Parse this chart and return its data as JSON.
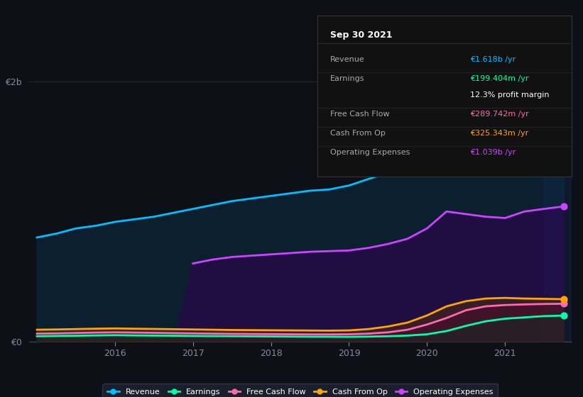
{
  "background_color": "#0d1117",
  "plot_bg_color": "#0d1117",
  "ylim": [
    0,
    2200000000.0
  ],
  "revenue": {
    "x": [
      2015.0,
      2015.25,
      2015.5,
      2015.75,
      2016.0,
      2016.25,
      2016.5,
      2016.75,
      2017.0,
      2017.25,
      2017.5,
      2017.75,
      2018.0,
      2018.25,
      2018.5,
      2018.75,
      2019.0,
      2019.25,
      2019.5,
      2019.75,
      2020.0,
      2020.25,
      2020.5,
      2020.75,
      2021.0,
      2021.25,
      2021.5,
      2021.75
    ],
    "y": [
      800000000.0,
      830000000.0,
      870000000.0,
      890000000.0,
      920000000.0,
      940000000.0,
      960000000.0,
      990000000.0,
      1020000000.0,
      1050000000.0,
      1080000000.0,
      1100000000.0,
      1120000000.0,
      1140000000.0,
      1160000000.0,
      1170000000.0,
      1200000000.0,
      1250000000.0,
      1300000000.0,
      1350000000.0,
      1520000000.0,
      1620000000.0,
      1580000000.0,
      1550000000.0,
      1540000000.0,
      1560000000.0,
      1590000000.0,
      1618000000.0
    ],
    "color": "#00bfff",
    "label": "Revenue",
    "linewidth": 2.0
  },
  "earnings": {
    "x": [
      2015.0,
      2015.25,
      2015.5,
      2015.75,
      2016.0,
      2016.25,
      2016.5,
      2016.75,
      2017.0,
      2017.25,
      2017.5,
      2017.75,
      2018.0,
      2018.25,
      2018.5,
      2018.75,
      2019.0,
      2019.25,
      2019.5,
      2019.75,
      2020.0,
      2020.25,
      2020.5,
      2020.75,
      2021.0,
      2021.25,
      2021.5,
      2021.75
    ],
    "y": [
      40000000.0,
      42000000.0,
      44000000.0,
      46000000.0,
      48000000.0,
      46000000.0,
      45000000.0,
      44000000.0,
      42000000.0,
      41000000.0,
      40000000.0,
      39000000.0,
      38000000.0,
      37000000.0,
      36000000.0,
      36000000.0,
      35000000.0,
      37000000.0,
      40000000.0,
      45000000.0,
      55000000.0,
      80000000.0,
      120000000.0,
      155000000.0,
      175000000.0,
      185000000.0,
      195000000.0,
      199000000.0
    ],
    "color": "#00ffaa",
    "label": "Earnings",
    "linewidth": 2.0
  },
  "free_cash_flow": {
    "x": [
      2015.0,
      2015.25,
      2015.5,
      2015.75,
      2016.0,
      2016.25,
      2016.5,
      2016.75,
      2017.0,
      2017.25,
      2017.5,
      2017.75,
      2018.0,
      2018.25,
      2018.5,
      2018.75,
      2019.0,
      2019.25,
      2019.5,
      2019.75,
      2020.0,
      2020.25,
      2020.5,
      2020.75,
      2021.0,
      2021.25,
      2021.5,
      2021.75
    ],
    "y": [
      60000000.0,
      62000000.0,
      65000000.0,
      68000000.0,
      70000000.0,
      68000000.0,
      66000000.0,
      64000000.0,
      62000000.0,
      60000000.0,
      58000000.0,
      57000000.0,
      56000000.0,
      55000000.0,
      54000000.0,
      54000000.0,
      55000000.0,
      60000000.0,
      70000000.0,
      90000000.0,
      130000000.0,
      180000000.0,
      240000000.0,
      270000000.0,
      280000000.0,
      285000000.0,
      288000000.0,
      290000000.0
    ],
    "color": "#ff69b4",
    "label": "Free Cash Flow",
    "linewidth": 2.0
  },
  "cash_from_op": {
    "x": [
      2015.0,
      2015.25,
      2015.5,
      2015.75,
      2016.0,
      2016.25,
      2016.5,
      2016.75,
      2017.0,
      2017.25,
      2017.5,
      2017.75,
      2018.0,
      2018.25,
      2018.5,
      2018.75,
      2019.0,
      2019.25,
      2019.5,
      2019.75,
      2020.0,
      2020.25,
      2020.5,
      2020.75,
      2021.0,
      2021.25,
      2021.5,
      2021.75
    ],
    "y": [
      90000000.0,
      92000000.0,
      95000000.0,
      98000000.0,
      100000000.0,
      98000000.0,
      96000000.0,
      94000000.0,
      92000000.0,
      90000000.0,
      88000000.0,
      87000000.0,
      86000000.0,
      85000000.0,
      84000000.0,
      83000000.0,
      85000000.0,
      95000000.0,
      115000000.0,
      145000000.0,
      200000000.0,
      270000000.0,
      310000000.0,
      330000000.0,
      335000000.0,
      330000000.0,
      328000000.0,
      325000000.0
    ],
    "color": "#ffa500",
    "label": "Cash From Op",
    "linewidth": 2.0
  },
  "operating_expenses": {
    "x": [
      2015.0,
      2015.25,
      2015.5,
      2015.75,
      2016.0,
      2016.25,
      2016.5,
      2016.75,
      2017.0,
      2017.25,
      2017.5,
      2017.75,
      2018.0,
      2018.25,
      2018.5,
      2018.75,
      2019.0,
      2019.25,
      2019.5,
      2019.75,
      2020.0,
      2020.25,
      2020.5,
      2020.75,
      2021.0,
      2021.25,
      2021.5,
      2021.75
    ],
    "y": [
      0,
      0,
      0,
      0,
      0,
      0,
      0,
      0,
      600000000.0,
      630000000.0,
      650000000.0,
      660000000.0,
      670000000.0,
      680000000.0,
      690000000.0,
      695000000.0,
      700000000.0,
      720000000.0,
      750000000.0,
      790000000.0,
      870000000.0,
      1000000000.0,
      980000000.0,
      960000000.0,
      950000000.0,
      1000000000.0,
      1020000000.0,
      1039000000.0
    ],
    "color": "#cc44ff",
    "label": "Operating Expenses",
    "linewidth": 2.0
  },
  "tooltip": {
    "date": "Sep 30 2021",
    "revenue_label": "Revenue",
    "revenue_value": "€1.618b /yr",
    "revenue_color": "#00bfff",
    "earnings_label": "Earnings",
    "earnings_value": "€199.404m /yr",
    "earnings_color": "#00ffaa",
    "margin_value": "12.3% profit margin",
    "margin_color": "#ffffff",
    "fcf_label": "Free Cash Flow",
    "fcf_value": "€289.742m /yr",
    "fcf_color": "#ff69b4",
    "cfop_label": "Cash From Op",
    "cfop_value": "€325.343m /yr",
    "cfop_color": "#ffa500",
    "opex_label": "Operating Expenses",
    "opex_value": "€1.039b /yr",
    "opex_color": "#cc44ff",
    "bg": "#111111",
    "border_color": "#333333",
    "text_color": "#aaaaaa",
    "title_color": "#ffffff"
  },
  "legend": {
    "items": [
      "Revenue",
      "Earnings",
      "Free Cash Flow",
      "Cash From Op",
      "Operating Expenses"
    ],
    "colors": [
      "#00bfff",
      "#00ffaa",
      "#ff69b4",
      "#ffa500",
      "#cc44ff"
    ],
    "bg": "#1a1f2b",
    "border_color": "#333344"
  },
  "grid_color": "#1e2530",
  "axis_color": "#444455",
  "tick_color": "#888899"
}
